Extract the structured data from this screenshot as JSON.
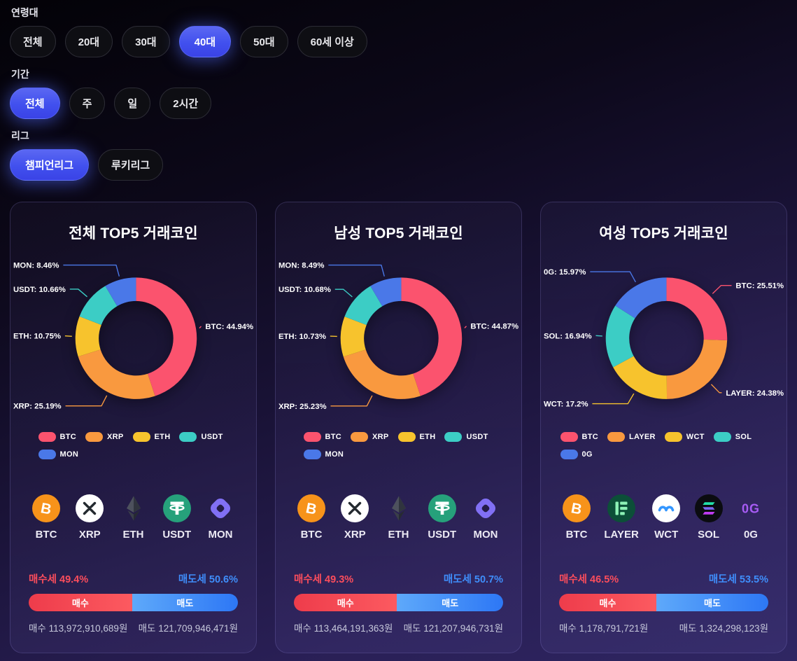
{
  "filters": {
    "age": {
      "label": "연령대",
      "options": [
        "전체",
        "20대",
        "30대",
        "40대",
        "50대",
        "60세 이상"
      ],
      "selected": "40대"
    },
    "period": {
      "label": "기간",
      "options": [
        "전체",
        "주",
        "일",
        "2시간"
      ],
      "selected": "전체"
    },
    "league": {
      "label": "리그",
      "options": [
        "챔피언리그",
        "루키리그"
      ],
      "selected": "챔피언리그"
    }
  },
  "palette": {
    "slice_colors": [
      "#fb536e",
      "#f9993f",
      "#f7c32d",
      "#3ccdc5",
      "#4a78e8"
    ],
    "buy_color": "#fb4d5c",
    "sell_color": "#3f8efb"
  },
  "chart_data": [
    {
      "type": "donut",
      "title": "전체 TOP5 거래코인",
      "legend_position": "bottom",
      "legend_wrap": true,
      "series": [
        {
          "name": "BTC",
          "value": 44.94,
          "label": "BTC: 44.94%"
        },
        {
          "name": "XRP",
          "value": 25.19,
          "label": "XRP: 25.19%"
        },
        {
          "name": "ETH",
          "value": 10.75,
          "label": "ETH: 10.75%"
        },
        {
          "name": "USDT",
          "value": 10.66,
          "label": "USDT: 10.66%"
        },
        {
          "name": "MON",
          "value": 8.46,
          "label": "MON: 8.46%"
        }
      ]
    },
    {
      "type": "donut",
      "title": "남성 TOP5 거래코인",
      "legend_position": "bottom",
      "legend_wrap": true,
      "series": [
        {
          "name": "BTC",
          "value": 44.87,
          "label": "BTC: 44.87%"
        },
        {
          "name": "XRP",
          "value": 25.23,
          "label": "XRP: 25.23%"
        },
        {
          "name": "ETH",
          "value": 10.73,
          "label": "ETH: 10.73%"
        },
        {
          "name": "USDT",
          "value": 10.68,
          "label": "USDT: 10.68%"
        },
        {
          "name": "MON",
          "value": 8.49,
          "label": "MON: 8.49%"
        }
      ]
    },
    {
      "type": "donut",
      "title": "여성 TOP5 거래코인",
      "legend_position": "bottom",
      "legend_wrap": false,
      "series": [
        {
          "name": "BTC",
          "value": 25.51,
          "label": "BTC: 25.51%"
        },
        {
          "name": "LAYER",
          "value": 24.38,
          "label": "LAYER: 24.38%"
        },
        {
          "name": "WCT",
          "value": 17.2,
          "label": "WCT: 17.2%"
        },
        {
          "name": "SOL",
          "value": 16.94,
          "label": "SOL: 16.94%"
        },
        {
          "name": "0G",
          "value": 15.97,
          "label": "0G: 15.97%"
        }
      ]
    }
  ],
  "cards": [
    {
      "coins": [
        {
          "symbol": "BTC",
          "icon": "btc-icon"
        },
        {
          "symbol": "XRP",
          "icon": "xrp-icon"
        },
        {
          "symbol": "ETH",
          "icon": "eth-icon"
        },
        {
          "symbol": "USDT",
          "icon": "usdt-icon"
        },
        {
          "symbol": "MON",
          "icon": "mon-icon"
        }
      ],
      "buy_label": "매수세",
      "buy_pct": "49.4%",
      "sell_label": "매도세",
      "sell_pct": "50.6%",
      "buy_ratio": 49.4,
      "bar_buy_label": "매수",
      "bar_sell_label": "매도",
      "buy_amount": "매수 113,972,910,689원",
      "sell_amount": "매도 121,709,946,471원"
    },
    {
      "coins": [
        {
          "symbol": "BTC",
          "icon": "btc-icon"
        },
        {
          "symbol": "XRP",
          "icon": "xrp-icon"
        },
        {
          "symbol": "ETH",
          "icon": "eth-icon"
        },
        {
          "symbol": "USDT",
          "icon": "usdt-icon"
        },
        {
          "symbol": "MON",
          "icon": "mon-icon"
        }
      ],
      "buy_label": "매수세",
      "buy_pct": "49.3%",
      "sell_label": "매도세",
      "sell_pct": "50.7%",
      "buy_ratio": 49.3,
      "bar_buy_label": "매수",
      "bar_sell_label": "매도",
      "buy_amount": "매수 113,464,191,363원",
      "sell_amount": "매도 121,207,946,731원"
    },
    {
      "coins": [
        {
          "symbol": "BTC",
          "icon": "btc-icon"
        },
        {
          "symbol": "LAYER",
          "icon": "layer-icon"
        },
        {
          "symbol": "WCT",
          "icon": "wct-icon"
        },
        {
          "symbol": "SOL",
          "icon": "sol-icon"
        },
        {
          "symbol": "0G",
          "icon": "0g-icon"
        }
      ],
      "buy_label": "매수세",
      "buy_pct": "46.5%",
      "sell_label": "매도세",
      "sell_pct": "53.5%",
      "buy_ratio": 46.5,
      "bar_buy_label": "매수",
      "bar_sell_label": "매도",
      "buy_amount": "매수 1,178,791,721원",
      "sell_amount": "매도 1,324,298,123원"
    }
  ]
}
